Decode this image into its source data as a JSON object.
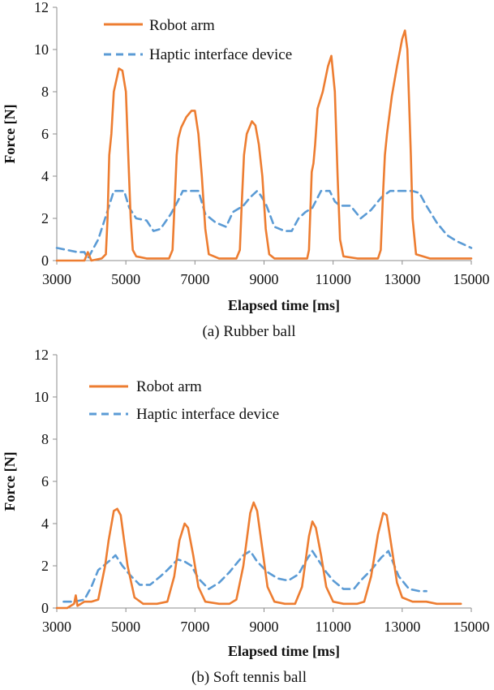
{
  "colors": {
    "robot": "#ED7D31",
    "haptic": "#5B9BD5"
  },
  "chart_data": [
    {
      "type": "line",
      "caption": "(a) Rubber ball",
      "xlabel": "Elapsed time [ms]",
      "ylabel": "Force [N]",
      "xlim": [
        3000,
        15000
      ],
      "ylim": [
        0,
        12
      ],
      "xticks": [
        3000,
        5000,
        7000,
        9000,
        11000,
        13000,
        15000
      ],
      "yticks": [
        0,
        2,
        4,
        6,
        8,
        10,
        12
      ],
      "legend": "top-left",
      "series": [
        {
          "name": "Robot arm",
          "style": "solid",
          "x": [
            3000,
            3400,
            3800,
            3900,
            4000,
            4300,
            4420,
            4470,
            4520,
            4580,
            4650,
            4800,
            4900,
            5000,
            5070,
            5140,
            5200,
            5300,
            5600,
            6000,
            6250,
            6350,
            6420,
            6470,
            6520,
            6600,
            6750,
            6900,
            7000,
            7100,
            7200,
            7300,
            7400,
            7700,
            8000,
            8200,
            8300,
            8350,
            8420,
            8500,
            8650,
            8750,
            8850,
            8950,
            9050,
            9150,
            9300,
            9700,
            10000,
            10250,
            10300,
            10380,
            10430,
            10480,
            10550,
            10700,
            10850,
            10950,
            11050,
            11130,
            11200,
            11300,
            11700,
            12000,
            12300,
            12380,
            12440,
            12500,
            12560,
            12700,
            12850,
            13000,
            13080,
            13150,
            13250,
            13300,
            13400,
            13800,
            14200,
            14600,
            15000
          ],
          "values": [
            0.0,
            0.0,
            0.0,
            0.4,
            0.0,
            0.1,
            0.3,
            2.0,
            5.0,
            6.0,
            8.0,
            9.1,
            9.0,
            8.0,
            5.0,
            2.0,
            0.5,
            0.2,
            0.1,
            0.1,
            0.1,
            0.5,
            3.0,
            5.0,
            5.8,
            6.3,
            6.8,
            7.1,
            7.1,
            6.0,
            4.0,
            1.5,
            0.3,
            0.1,
            0.1,
            0.1,
            0.5,
            2.5,
            5.0,
            6.0,
            6.6,
            6.4,
            5.5,
            4.0,
            1.5,
            0.3,
            0.1,
            0.1,
            0.1,
            0.1,
            0.5,
            4.2,
            4.6,
            5.5,
            7.2,
            8.0,
            9.2,
            9.7,
            8.0,
            4.0,
            1.0,
            0.2,
            0.1,
            0.1,
            0.1,
            0.5,
            3.0,
            5.0,
            6.0,
            7.8,
            9.2,
            10.5,
            10.9,
            10.0,
            5.0,
            2.0,
            0.3,
            0.1,
            0.1,
            0.1,
            0.1
          ]
        },
        {
          "name": "Haptic interface device",
          "style": "dashed",
          "x": [
            3000,
            3300,
            3600,
            3800,
            3900,
            4200,
            4400,
            4650,
            4950,
            5100,
            5300,
            5600,
            5800,
            6000,
            6300,
            6500,
            6650,
            6950,
            7100,
            7300,
            7600,
            7900,
            8100,
            8400,
            8600,
            8800,
            8900,
            9050,
            9300,
            9600,
            9800,
            10000,
            10200,
            10400,
            10650,
            10900,
            11050,
            11200,
            11500,
            11800,
            12100,
            12400,
            12650,
            13000,
            13300,
            13500,
            13700,
            14000,
            14300,
            14600,
            15000
          ],
          "values": [
            0.6,
            0.5,
            0.4,
            0.4,
            0.1,
            1.0,
            2.0,
            3.3,
            3.3,
            2.5,
            2.0,
            1.9,
            1.4,
            1.5,
            2.2,
            2.8,
            3.3,
            3.3,
            3.3,
            2.2,
            1.8,
            1.6,
            2.3,
            2.6,
            3.0,
            3.3,
            3.1,
            2.7,
            1.6,
            1.4,
            1.4,
            2.0,
            2.3,
            2.5,
            3.3,
            3.3,
            2.8,
            2.6,
            2.6,
            2.0,
            2.4,
            3.0,
            3.3,
            3.3,
            3.3,
            3.2,
            2.6,
            1.8,
            1.2,
            0.9,
            0.6
          ]
        }
      ]
    },
    {
      "type": "line",
      "caption": "(b) Soft tennis ball",
      "xlabel": "Elapsed time [ms]",
      "ylabel": "Force [N]",
      "xlim": [
        3000,
        15000
      ],
      "ylim": [
        0,
        12
      ],
      "xticks": [
        3000,
        5000,
        7000,
        9000,
        11000,
        13000,
        15000
      ],
      "yticks": [
        0,
        2,
        4,
        6,
        8,
        10,
        12
      ],
      "legend": "top-left",
      "series": [
        {
          "name": "Robot arm",
          "style": "solid",
          "x": [
            3000,
            3300,
            3500,
            3550,
            3600,
            3800,
            4000,
            4200,
            4400,
            4500,
            4650,
            4750,
            4850,
            4950,
            5050,
            5250,
            5500,
            5900,
            6200,
            6400,
            6550,
            6700,
            6800,
            6950,
            7100,
            7300,
            7700,
            8000,
            8200,
            8400,
            8600,
            8700,
            8800,
            8950,
            9100,
            9300,
            9600,
            9900,
            10100,
            10300,
            10400,
            10500,
            10650,
            10800,
            11000,
            11300,
            11700,
            11900,
            12100,
            12300,
            12450,
            12550,
            12700,
            12850,
            13000,
            13300,
            13700,
            14000,
            14300,
            14700
          ],
          "values": [
            0.0,
            0.0,
            0.2,
            0.6,
            0.1,
            0.3,
            0.3,
            0.4,
            2.0,
            3.2,
            4.6,
            4.7,
            4.4,
            3.2,
            2.0,
            0.5,
            0.2,
            0.2,
            0.3,
            1.5,
            3.2,
            4.0,
            3.8,
            2.5,
            1.0,
            0.3,
            0.2,
            0.2,
            0.4,
            2.0,
            4.5,
            5.0,
            4.6,
            2.8,
            1.0,
            0.3,
            0.2,
            0.2,
            1.0,
            3.4,
            4.1,
            3.8,
            2.5,
            1.0,
            0.3,
            0.2,
            0.2,
            0.3,
            1.5,
            3.5,
            4.5,
            4.4,
            2.8,
            1.2,
            0.5,
            0.3,
            0.3,
            0.2,
            0.2,
            0.2
          ]
        },
        {
          "name": "Haptic interface device",
          "style": "dashed",
          "x": [
            3200,
            3500,
            3800,
            4000,
            4200,
            4500,
            4700,
            4900,
            5100,
            5400,
            5700,
            6000,
            6200,
            6500,
            6700,
            6900,
            7100,
            7400,
            7700,
            8000,
            8200,
            8400,
            8600,
            8800,
            9100,
            9400,
            9700,
            10000,
            10200,
            10400,
            10600,
            10800,
            11000,
            11300,
            11600,
            11800,
            12100,
            12400,
            12600,
            12900,
            13200,
            13500,
            13700
          ],
          "values": [
            0.3,
            0.3,
            0.4,
            1.0,
            1.8,
            2.2,
            2.5,
            2.0,
            1.6,
            1.1,
            1.1,
            1.5,
            1.8,
            2.3,
            2.2,
            2.0,
            1.4,
            0.9,
            1.2,
            1.7,
            2.1,
            2.5,
            2.7,
            2.2,
            1.7,
            1.4,
            1.3,
            1.6,
            2.2,
            2.7,
            2.2,
            1.7,
            1.3,
            0.9,
            0.9,
            1.3,
            1.8,
            2.4,
            2.7,
            1.5,
            0.9,
            0.8,
            0.8
          ]
        }
      ]
    }
  ]
}
